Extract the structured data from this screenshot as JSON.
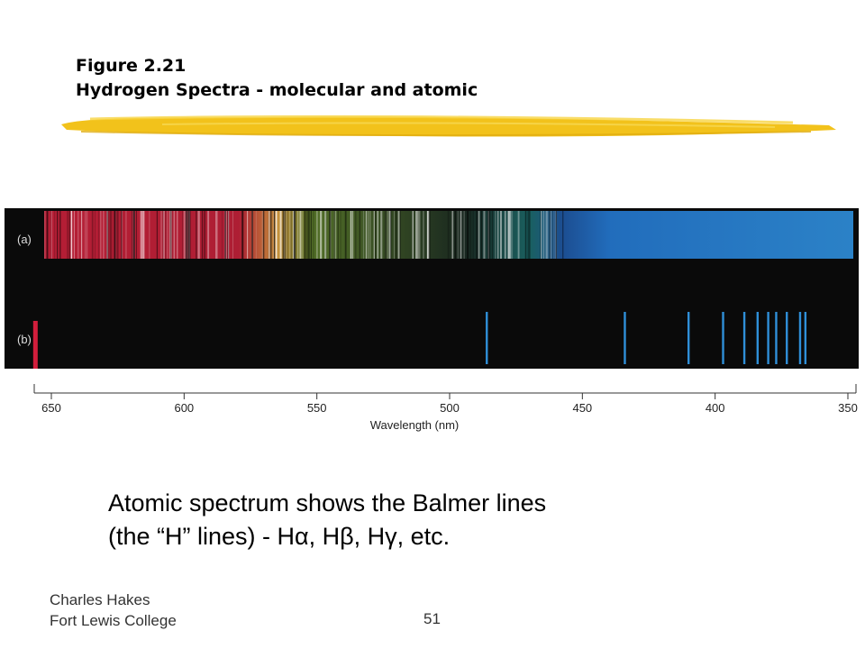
{
  "slide": {
    "title_line1": "Figure 2.21",
    "title_line2": "Hydrogen Spectra - molecular and atomic",
    "caption_line1": "Atomic spectrum shows the Balmer lines",
    "caption_line2": "(the “H” lines) - Hα, Hβ, Hγ, etc.",
    "footer_author": "Charles Hakes",
    "footer_institution": "Fort Lewis College",
    "page_number": "51"
  },
  "figure": {
    "label_a": "(a)",
    "label_b": "(b)",
    "axis_label": "Wavelength (nm)",
    "ticks": [
      "650",
      "600",
      "550",
      "500",
      "450",
      "400",
      "350"
    ],
    "atomic_lines_nm": [
      656,
      486,
      434,
      410,
      397,
      389,
      384,
      380,
      377,
      373,
      368,
      366
    ],
    "colors": {
      "highlight": "#f2c21b",
      "spectrum_background": "#0a0a0a",
      "red_line": "#d21e3c",
      "blue_line": "#2f8fd8"
    }
  }
}
